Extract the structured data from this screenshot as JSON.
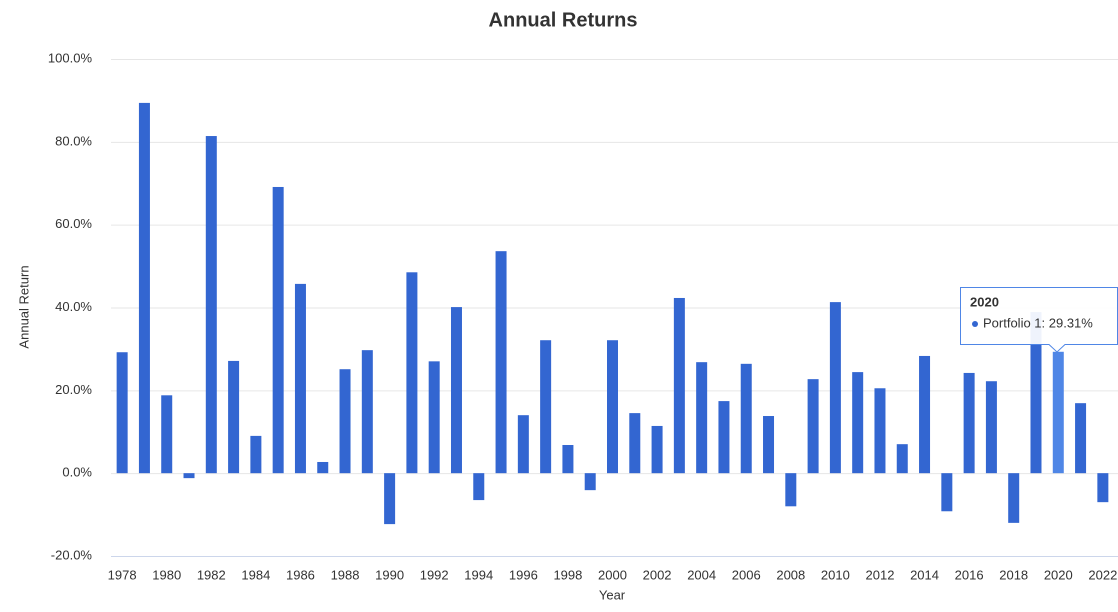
{
  "chart_data": {
    "type": "bar",
    "title": "Annual Returns",
    "x_label": "Year",
    "y_label": "Annual Return",
    "categories": [
      "1978",
      null,
      "1980",
      null,
      "1982",
      null,
      "1984",
      null,
      "1986",
      null,
      "1988",
      null,
      "1990",
      null,
      "1992",
      null,
      "1994",
      null,
      "1996",
      null,
      "1998",
      null,
      "2000",
      null,
      "2002",
      null,
      "2004",
      null,
      "2006",
      null,
      "2008",
      null,
      "2010",
      null,
      "2012",
      null,
      "2014",
      null,
      "2016",
      null,
      "2018",
      null,
      "2020",
      null,
      "2022"
    ],
    "series": [
      {
        "name": "Portfolio 1",
        "color": "#3366d1",
        "values": [
          29.2,
          89.4,
          18.8,
          -1.2,
          81.4,
          27.1,
          9.0,
          69.1,
          45.7,
          2.7,
          25.1,
          29.7,
          -12.3,
          48.5,
          27.0,
          40.1,
          -6.5,
          53.6,
          14.0,
          32.1,
          6.8,
          -4.1,
          32.1,
          14.5,
          11.4,
          42.3,
          26.8,
          17.4,
          26.4,
          13.8,
          -8.0,
          22.7,
          41.3,
          24.4,
          20.5,
          7.0,
          28.3,
          -9.2,
          24.2,
          22.2,
          -12.0,
          38.9,
          29.31,
          16.9,
          -7.0
        ]
      }
    ],
    "ylim": [
      -20,
      100
    ],
    "yticks": [
      {
        "value": -20,
        "label": "-20.0%"
      },
      {
        "value": 0,
        "label": "0.0%"
      },
      {
        "value": 20,
        "label": "20.0%"
      },
      {
        "value": 40,
        "label": "40.0%"
      },
      {
        "value": 60,
        "label": "60.0%"
      },
      {
        "value": 80,
        "label": "80.0%"
      },
      {
        "value": 100,
        "label": "100.0%"
      }
    ],
    "grid": true,
    "tooltip": {
      "title": "2020",
      "text": "Portfolio 1: 29.31%",
      "color": "#4f86e6"
    }
  }
}
